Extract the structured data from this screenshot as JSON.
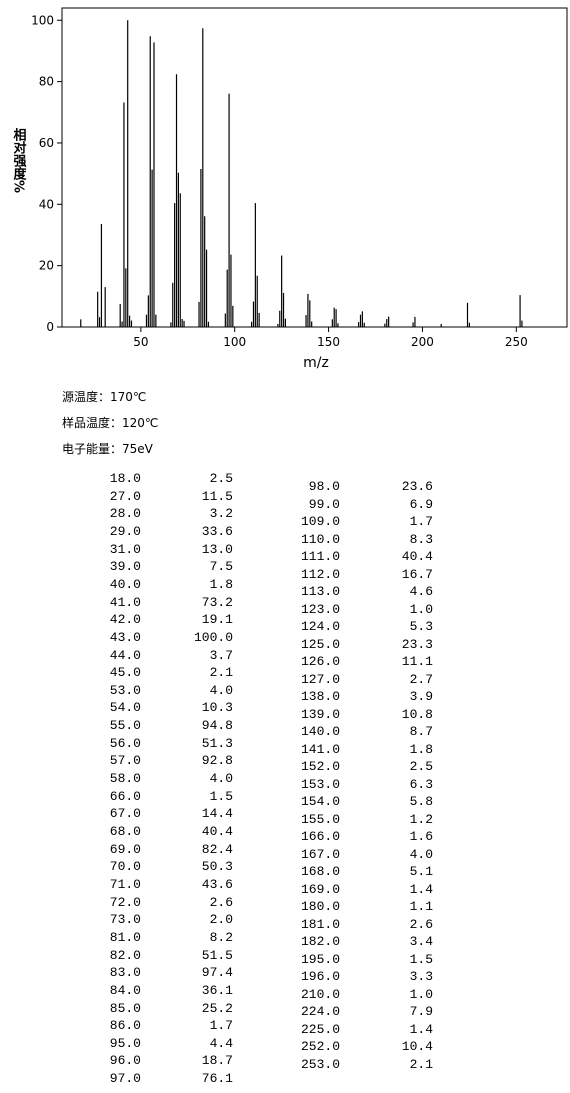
{
  "chart_data": {
    "type": "bar",
    "ylabel": "相对强度%",
    "xlabel": "m/z",
    "color": "#000000",
    "xlim": [
      8,
      277
    ],
    "xticks": [
      50,
      100,
      150,
      200,
      250
    ],
    "ylim": [
      0,
      104
    ],
    "yticks": [
      0,
      20,
      40,
      60,
      80,
      100
    ],
    "x": [
      18,
      27,
      28,
      29,
      31,
      39,
      40,
      41,
      42,
      43,
      44,
      45,
      53,
      54,
      55,
      56,
      57,
      58,
      66,
      67,
      68,
      69,
      70,
      71,
      72,
      73,
      81,
      82,
      83,
      84,
      85,
      86,
      95,
      96,
      97,
      98,
      99,
      109,
      110,
      111,
      112,
      113,
      123,
      124,
      125,
      126,
      127,
      138,
      139,
      140,
      141,
      152,
      153,
      154,
      155,
      166,
      167,
      168,
      169,
      180,
      181,
      182,
      195,
      196,
      210,
      224,
      225,
      252,
      253
    ],
    "values": [
      2.5,
      11.5,
      3.2,
      33.6,
      13.0,
      7.5,
      1.8,
      73.2,
      19.1,
      100.0,
      3.7,
      2.1,
      4.0,
      10.3,
      94.8,
      51.3,
      92.8,
      4.0,
      1.5,
      14.4,
      40.4,
      82.4,
      50.3,
      43.6,
      2.6,
      2.0,
      8.2,
      51.5,
      97.4,
      36.1,
      25.2,
      1.7,
      4.4,
      18.7,
      76.1,
      23.6,
      6.9,
      1.7,
      8.3,
      40.4,
      16.7,
      4.6,
      1.0,
      5.3,
      23.3,
      11.1,
      2.7,
      3.9,
      10.8,
      8.7,
      1.8,
      2.5,
      6.3,
      5.8,
      1.2,
      1.6,
      4.0,
      5.1,
      1.4,
      1.1,
      2.6,
      3.4,
      1.5,
      3.3,
      1.0,
      7.9,
      1.4,
      10.4,
      2.1
    ]
  },
  "info": [
    "源温度：170℃",
    "样品温度：120℃",
    "电子能量：75eV"
  ],
  "table": {
    "left": [
      [
        "18.0",
        "2.5"
      ],
      [
        "27.0",
        "11.5"
      ],
      [
        "28.0",
        "3.2"
      ],
      [
        "29.0",
        "33.6"
      ],
      [
        "31.0",
        "13.0"
      ],
      [
        "39.0",
        "7.5"
      ],
      [
        "40.0",
        "1.8"
      ],
      [
        "41.0",
        "73.2"
      ],
      [
        "42.0",
        "19.1"
      ],
      [
        "43.0",
        "100.0"
      ],
      [
        "44.0",
        "3.7"
      ],
      [
        "45.0",
        "2.1"
      ],
      [
        "53.0",
        "4.0"
      ],
      [
        "54.0",
        "10.3"
      ],
      [
        "55.0",
        "94.8"
      ],
      [
        "56.0",
        "51.3"
      ],
      [
        "57.0",
        "92.8"
      ],
      [
        "58.0",
        "4.0"
      ],
      [
        "66.0",
        "1.5"
      ],
      [
        "67.0",
        "14.4"
      ],
      [
        "68.0",
        "40.4"
      ],
      [
        "69.0",
        "82.4"
      ],
      [
        "70.0",
        "50.3"
      ],
      [
        "71.0",
        "43.6"
      ],
      [
        "72.0",
        "2.6"
      ],
      [
        "73.0",
        "2.0"
      ],
      [
        "81.0",
        "8.2"
      ],
      [
        "82.0",
        "51.5"
      ],
      [
        "83.0",
        "97.4"
      ],
      [
        "84.0",
        "36.1"
      ],
      [
        "85.0",
        "25.2"
      ],
      [
        "86.0",
        "1.7"
      ],
      [
        "95.0",
        "4.4"
      ],
      [
        "96.0",
        "18.7"
      ],
      [
        "97.0",
        "76.1"
      ]
    ],
    "right": [
      [
        "98.0",
        "23.6"
      ],
      [
        "99.0",
        "6.9"
      ],
      [
        "109.0",
        "1.7"
      ],
      [
        "110.0",
        "8.3"
      ],
      [
        "111.0",
        "40.4"
      ],
      [
        "112.0",
        "16.7"
      ],
      [
        "113.0",
        "4.6"
      ],
      [
        "123.0",
        "1.0"
      ],
      [
        "124.0",
        "5.3"
      ],
      [
        "125.0",
        "23.3"
      ],
      [
        "126.0",
        "11.1"
      ],
      [
        "127.0",
        "2.7"
      ],
      [
        "138.0",
        "3.9"
      ],
      [
        "139.0",
        "10.8"
      ],
      [
        "140.0",
        "8.7"
      ],
      [
        "141.0",
        "1.8"
      ],
      [
        "152.0",
        "2.5"
      ],
      [
        "153.0",
        "6.3"
      ],
      [
        "154.0",
        "5.8"
      ],
      [
        "155.0",
        "1.2"
      ],
      [
        "166.0",
        "1.6"
      ],
      [
        "167.0",
        "4.0"
      ],
      [
        "168.0",
        "5.1"
      ],
      [
        "169.0",
        "1.4"
      ],
      [
        "180.0",
        "1.1"
      ],
      [
        "181.0",
        "2.6"
      ],
      [
        "182.0",
        "3.4"
      ],
      [
        "195.0",
        "1.5"
      ],
      [
        "196.0",
        "3.3"
      ],
      [
        "210.0",
        "1.0"
      ],
      [
        "224.0",
        "7.9"
      ],
      [
        "225.0",
        "1.4"
      ],
      [
        "252.0",
        "10.4"
      ],
      [
        "253.0",
        "2.1"
      ]
    ]
  }
}
